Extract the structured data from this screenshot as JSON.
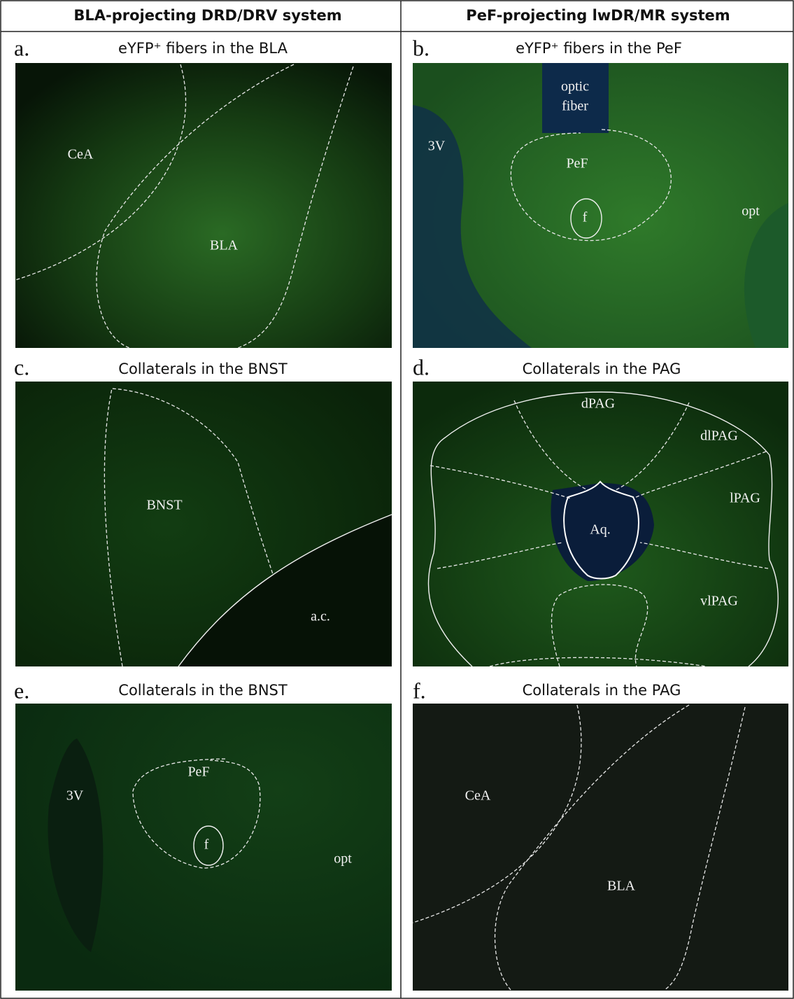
{
  "columns": [
    "BLA-projecting DRD/DRV system",
    "PeF-projecting lwDR/MR system"
  ],
  "panels": [
    {
      "letter": "a.",
      "title": "eYFP⁺ fibers in the BLA",
      "labels": [
        "CeA",
        "BLA"
      ]
    },
    {
      "letter": "b.",
      "title": "eYFP⁺ fibers in the PeF",
      "labels": [
        "optic",
        "fiber",
        "3V",
        "PeF",
        "f",
        "opt"
      ]
    },
    {
      "letter": "c.",
      "title": "Collaterals in the BNST",
      "labels": [
        "BNST",
        "a.c."
      ]
    },
    {
      "letter": "d.",
      "title": "Collaterals in the PAG",
      "labels": [
        "dPAG",
        "dlPAG",
        "lPAG",
        "Aq.",
        "vlPAG"
      ]
    },
    {
      "letter": "e.",
      "title": "Collaterals in the BNST",
      "labels": [
        "3V",
        "PeF",
        "f",
        "opt"
      ]
    },
    {
      "letter": "f.",
      "title": "Collaterals in the PAG",
      "labels": [
        "CeA",
        "BLA"
      ]
    }
  ]
}
